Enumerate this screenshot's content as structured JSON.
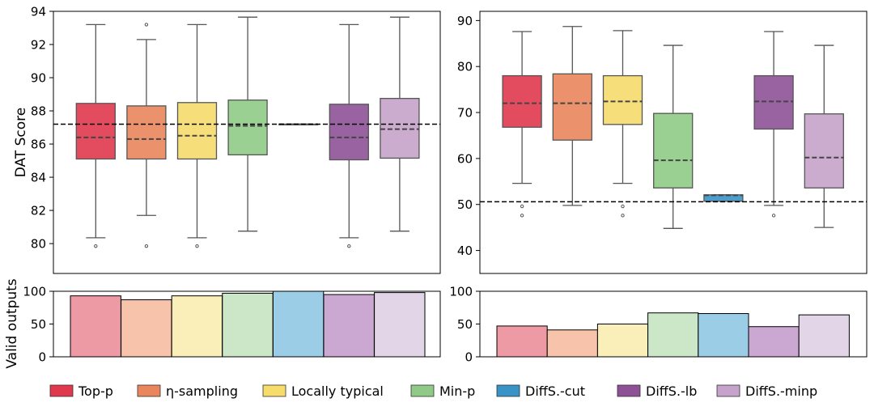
{
  "chart_data": {
    "type": "box",
    "ylabel_top": "DAT Score",
    "ylabel_bottom": "Valid outputs",
    "methods": [
      {
        "name": "Top-p",
        "color": "#e0394e",
        "light": "#ee9aa4"
      },
      {
        "name": "η-sampling",
        "color": "#e9865d",
        "light": "#f7c4ab"
      },
      {
        "name": "Locally typical",
        "color": "#f5dc6b",
        "light": "#faefb9"
      },
      {
        "name": "Min-p",
        "color": "#8fcb86",
        "light": "#cbe7c8"
      },
      {
        "name": "DiffS.-cut",
        "color": "#3a93c6",
        "light": "#9bcde6"
      },
      {
        "name": "DiffS.-lb",
        "color": "#8e5196",
        "light": "#caa8d1"
      },
      {
        "name": "DiffS.-minp",
        "color": "#c5a3ca",
        "light": "#e2d5e8"
      }
    ],
    "panels": [
      {
        "name": "left",
        "ylim": [
          78.2,
          94
        ],
        "yticks": [
          80,
          82,
          84,
          86,
          88,
          90,
          92,
          94
        ],
        "reference_line": 87.2,
        "boxes": [
          {
            "method": "Top-p",
            "whislo": 80.35,
            "q1": 85.1,
            "med": 86.4,
            "q3": 88.45,
            "whishi": 93.2,
            "fliers": [
              79.85
            ]
          },
          {
            "method": "η-sampling",
            "whislo": 81.7,
            "q1": 85.1,
            "med": 86.3,
            "q3": 88.3,
            "whishi": 92.3,
            "fliers": [
              79.85,
              93.2
            ]
          },
          {
            "method": "Locally typical",
            "whislo": 80.35,
            "q1": 85.1,
            "med": 86.5,
            "q3": 88.5,
            "whishi": 93.2,
            "fliers": [
              79.85
            ]
          },
          {
            "method": "Min-p",
            "whislo": 80.75,
            "q1": 85.35,
            "med": 87.1,
            "q3": 88.65,
            "whishi": 93.65,
            "fliers": []
          },
          {
            "method": "DiffS.-cut",
            "whislo": 87.2,
            "q1": 87.2,
            "med": 87.2,
            "q3": 87.2,
            "whishi": 87.2,
            "fliers": []
          },
          {
            "method": "DiffS.-lb",
            "whislo": 80.35,
            "q1": 85.05,
            "med": 86.4,
            "q3": 88.4,
            "whishi": 93.2,
            "fliers": [
              79.85
            ]
          },
          {
            "method": "DiffS.-minp",
            "whislo": 80.75,
            "q1": 85.15,
            "med": 86.9,
            "q3": 88.75,
            "whishi": 93.65,
            "fliers": []
          }
        ],
        "valid_ylim": [
          0,
          100
        ],
        "valid_yticks": [
          0,
          50,
          100
        ],
        "valid_outputs": [
          93,
          87,
          93,
          97,
          100,
          95,
          98
        ]
      },
      {
        "name": "right",
        "ylim": [
          35,
          92
        ],
        "yticks": [
          40,
          50,
          60,
          70,
          80,
          90
        ],
        "reference_line": 50.6,
        "boxes": [
          {
            "method": "Top-p",
            "whislo": 54.6,
            "q1": 66.8,
            "med": 72.0,
            "q3": 78.0,
            "whishi": 87.6,
            "fliers": [
              49.6,
              47.6
            ]
          },
          {
            "method": "η-sampling",
            "whislo": 49.8,
            "q1": 64.0,
            "med": 72.0,
            "q3": 78.4,
            "whishi": 88.7,
            "fliers": []
          },
          {
            "method": "Locally typical",
            "whislo": 54.6,
            "q1": 67.4,
            "med": 72.4,
            "q3": 78.0,
            "whishi": 87.8,
            "fliers": [
              49.6,
              47.6
            ]
          },
          {
            "method": "Min-p",
            "whislo": 44.8,
            "q1": 53.6,
            "med": 59.6,
            "q3": 69.8,
            "whishi": 84.6,
            "fliers": []
          },
          {
            "method": "DiffS.-cut",
            "whislo": 50.7,
            "q1": 50.7,
            "med": 52.0,
            "q3": 52.1,
            "whishi": 52.1,
            "fliers": []
          },
          {
            "method": "DiffS.-lb",
            "whislo": 49.8,
            "q1": 66.4,
            "med": 72.4,
            "q3": 78.0,
            "whishi": 87.6,
            "fliers": [
              47.6
            ]
          },
          {
            "method": "DiffS.-minp",
            "whislo": 45.0,
            "q1": 53.6,
            "med": 60.2,
            "q3": 69.7,
            "whishi": 84.6,
            "fliers": []
          }
        ],
        "valid_ylim": [
          0,
          100
        ],
        "valid_yticks": [
          0,
          50,
          100
        ],
        "valid_outputs": [
          47,
          41,
          50,
          67,
          66,
          46,
          64
        ]
      }
    ]
  }
}
